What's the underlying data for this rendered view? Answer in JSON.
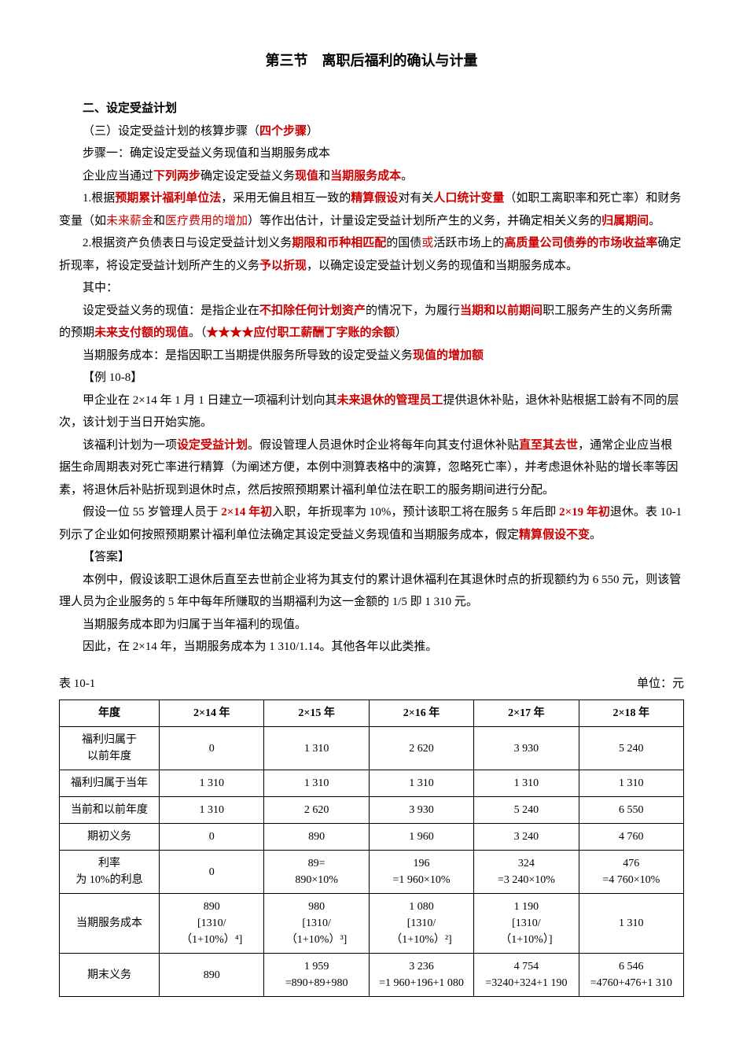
{
  "title": "第三节　离职后福利的确认与计量",
  "heading1": "二、设定受益计划",
  "p1a": "（三）设定受益计划的核算步骤（",
  "p1b": "四个步骤",
  "p1c": "）",
  "p2": "步骤一：确定设定受益义务现值和当期服务成本",
  "p3a": "企业应当通过",
  "p3b": "下列两步",
  "p3c": "确定设定受益义务",
  "p3d": "现值",
  "p3e": "和",
  "p3f": "当期服务成本",
  "p3g": "。",
  "p4a": "1.根据",
  "p4b": "预期累计福利单位法",
  "p4c": "，采用无偏且相互一致的",
  "p4d": "精算假设",
  "p4e": "对有关",
  "p4f": "人口统计变量",
  "p4g": "（如职工离职率和死亡率）和财务变量（如",
  "p4h": "未来薪金",
  "p4i": "和",
  "p4j": "医疗费用的增加",
  "p4k": "）等作出估计，计量设定受益计划所产生的义务，并确定相关义务的",
  "p4l": "归属期间",
  "p4m": "。",
  "p5a": "2.根据资产负债表日与设定受益计划义务",
  "p5b": "期限和币种相匹配",
  "p5c": "的国债",
  "p5d": "或",
  "p5e": "活跃市场上的",
  "p5f": "高质量公司债券的市场收益率",
  "p5g": "确定折现率，将设定受益计划所产生的义务",
  "p5h": "予以折现",
  "p5i": "，以确定设定受益计划义务的现值和当期服务成本。",
  "p6": "其中：",
  "p7a": "设定受益义务的现值：是指企业在",
  "p7b": "不扣除任何计划资产",
  "p7c": "的情况下，为履行",
  "p7d": "当期和以前期间",
  "p7e": "职工服务产生的义务所需的预期",
  "p7f": "未来支付额的现值",
  "p7g": "。（",
  "p7h": "★★★★应付职工薪酬丁字账的余额",
  "p7i": "）",
  "p8a": "当期服务成本：是指因职工当期提供服务所导致的设定受益义务",
  "p8b": "现值的增加额",
  "p8c": "",
  "p9": "【例 10-8】",
  "p10a": "甲企业在 2×14 年 1 月 1 日建立一项福利计划向其",
  "p10b": "未来退休的管理员工",
  "p10c": "提供退休补贴，退休补贴根据工龄有不同的层次，该计划于当日开始实施。",
  "p11a": "该福利计划为一项",
  "p11b": "设定受益计划",
  "p11c": "。假设管理人员退休时企业将每年向其支付退休补贴",
  "p11d": "直至其去世",
  "p11e": "，通常企业应当根据生命周期表对死亡率进行精算（为阐述方便，本例中测算表格中的演算，忽略死亡率），并考虑退休补贴的增长率等因素，将退休后补贴折现到退休时点，然后按照预期累计福利单位法在职工的服务期间进行分配。",
  "p12a": "假设一位 55 岁管理人员于 ",
  "p12b": "2×14 年初",
  "p12c": "入职，年折现率为 10%，预计该职工将在服务 5 年后即 ",
  "p12d": "2×19 年初",
  "p12e": "退休。表 10-1 列示了企业如何按照预期累计福利单位法确定其设定受益义务现值和当期服务成本，假定",
  "p12f": "精算假设不变",
  "p12g": "。",
  "p13": "【答案】",
  "p14": "本例中，假设该职工退休后直至去世前企业将为其支付的累计退休福利在其退休时点的折现额约为 6 550 元，则该管理人员为企业服务的 5 年中每年所赚取的当期福利为这一金额的 1/5 即 1 310 元。",
  "p15": "当期服务成本即为归属于当年福利的现值。",
  "p16": "因此，在 2×14 年，当期服务成本为 1 310/1.14。其他各年以此类推。",
  "table_label": "表 10-1",
  "table_unit": "单位：元",
  "table": {
    "columns": [
      "年度",
      "2×14 年",
      "2×15 年",
      "2×16 年",
      "2×17 年",
      "2×18 年"
    ],
    "rows": [
      {
        "label": "福利归属于\n以前年度",
        "cells": [
          "0",
          "1 310",
          "2 620",
          "3 930",
          "5 240"
        ]
      },
      {
        "label": "福利归属于当年",
        "cells": [
          "1 310",
          "1 310",
          "1 310",
          "1 310",
          "1 310"
        ]
      },
      {
        "label": "当前和以前年度",
        "cells": [
          "1 310",
          "2 620",
          "3 930",
          "5 240",
          "6 550"
        ]
      },
      {
        "label": "期初义务",
        "cells": [
          "0",
          "890",
          "1 960",
          "3 240",
          "4 760"
        ]
      },
      {
        "label": "利率\n为 10%的利息",
        "cells": [
          "0",
          "89=\n890×10%",
          "196\n=1 960×10%",
          "324\n=3 240×10%",
          "476\n=4 760×10%"
        ]
      },
      {
        "label": "当期服务成本",
        "cells": [
          "890\n[1310/\n（1+10%）⁴]",
          "980\n[1310/\n（1+10%）³]",
          "1 080\n[1310/\n（1+10%）²]",
          "1 190\n[1310/\n（1+10%）]",
          "1 310"
        ]
      },
      {
        "label": "期末义务",
        "cells": [
          "890",
          "1 959\n=890+89+980",
          "3 236\n=1 960+196+1 080",
          "4 754\n=3240+324+1 190",
          "6 546\n=4760+476+1 310"
        ]
      }
    ]
  }
}
